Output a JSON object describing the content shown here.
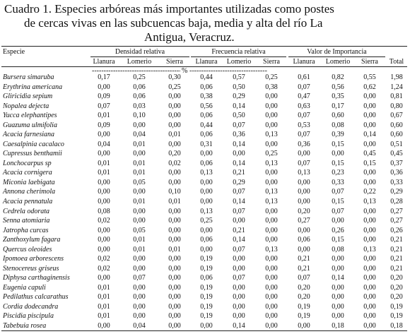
{
  "title": [
    "Cuadro 1. Especies arbóreas más importantes utilizadas como  postes",
    "de cercas vivas en las subcuencas baja, media y alta del  río La",
    "Antigua, Veracruz."
  ],
  "table": {
    "species_header": "Especie",
    "groups": [
      "Densidad relativa",
      "Frecuencia relativa",
      "Valor de Importancia"
    ],
    "subheaders": [
      "Llanura",
      "Lomerio",
      "Sierra",
      "Llanura",
      "Lomerio",
      "Sierra",
      "Llanura",
      "Lomerio",
      "Sierra",
      "Total"
    ],
    "unit": "%",
    "rows": [
      [
        "Bursera simaruba",
        "0,17",
        "0,25",
        "0,30",
        "0,44",
        "0,57",
        "0,25",
        "0,61",
        "0,82",
        "0,55",
        "1,98"
      ],
      [
        "Erythrina americana",
        "0,00",
        "0,06",
        "0,25",
        "0,06",
        "0,50",
        "0,38",
        "0,07",
        "0,56",
        "0,62",
        "1,24"
      ],
      [
        "Gliricidia sepium",
        "0,09",
        "0,06",
        "0,00",
        "0,38",
        "0,29",
        "0,00",
        "0,47",
        "0,35",
        "0,00",
        "0,81"
      ],
      [
        "Nopalea dejecta",
        "0,07",
        "0,03",
        "0,00",
        "0,56",
        "0,14",
        "0,00",
        "0,63",
        "0,17",
        "0,00",
        "0,80"
      ],
      [
        "Yucca elephantipes",
        "0,01",
        "0,10",
        "0,00",
        "0,06",
        "0,50",
        "0,00",
        "0,07",
        "0,60",
        "0,00",
        "0,67"
      ],
      [
        "Guazuma ulmifolia",
        "0,09",
        "0,00",
        "0,00",
        "0,44",
        "0,07",
        "0,00",
        "0,53",
        "0,08",
        "0,00",
        "0,60"
      ],
      [
        "Acacia farnesiana",
        "0,00",
        "0,04",
        "0,01",
        "0,06",
        "0,36",
        "0,13",
        "0,07",
        "0,39",
        "0,14",
        "0,60"
      ],
      [
        "Caesalpinia cacalaco",
        "0,04",
        "0,01",
        "0,00",
        "0,31",
        "0,14",
        "0,00",
        "0,36",
        "0,15",
        "0,00",
        "0,51"
      ],
      [
        "Cupressus benthamii",
        "0,00",
        "0,00",
        "0,20",
        "0,00",
        "0,00",
        "0,25",
        "0,00",
        "0,00",
        "0,45",
        "0,45"
      ],
      [
        "Lonchocarpus sp",
        "0,01",
        "0,01",
        "0,02",
        "0,06",
        "0,14",
        "0,13",
        "0,07",
        "0,15",
        "0,15",
        "0,37"
      ],
      [
        "Acacia cornigera",
        "0,01",
        "0,01",
        "0,00",
        "0,13",
        "0,21",
        "0,00",
        "0,13",
        "0,23",
        "0,00",
        "0,36"
      ],
      [
        "Miconia laebigata",
        "0,00",
        "0,05",
        "0,00",
        "0,00",
        "0,29",
        "0,00",
        "0,00",
        "0,33",
        "0,00",
        "0,33"
      ],
      [
        "Annona cherimola",
        "0,00",
        "0,00",
        "0,10",
        "0,00",
        "0,07",
        "0,13",
        "0,00",
        "0,07",
        "0,22",
        "0,29"
      ],
      [
        "Acacia pennatula",
        "0,00",
        "0,01",
        "0,01",
        "0,00",
        "0,14",
        "0,13",
        "0,00",
        "0,15",
        "0,13",
        "0,28"
      ],
      [
        "Cedrela odorata",
        "0,08",
        "0,00",
        "0,00",
        "0,13",
        "0,07",
        "0,00",
        "0,20",
        "0,07",
        "0,00",
        "0,27"
      ],
      [
        "Senna atomiaria",
        "0,02",
        "0,00",
        "0,00",
        "0,25",
        "0,00",
        "0,00",
        "0,27",
        "0,00",
        "0,00",
        "0,27"
      ],
      [
        "Jatropha curcas",
        "0,00",
        "0,05",
        "0,00",
        "0,00",
        "0,21",
        "0,00",
        "0,00",
        "0,26",
        "0,00",
        "0,26"
      ],
      [
        "Zanthoxylum fagara",
        "0,00",
        "0,01",
        "0,00",
        "0,06",
        "0,14",
        "0,00",
        "0,06",
        "0,15",
        "0,00",
        "0,21"
      ],
      [
        "Quercus oleoides",
        "0,00",
        "0,01",
        "0,01",
        "0,00",
        "0,07",
        "0,13",
        "0,00",
        "0,08",
        "0,13",
        "0,21"
      ],
      [
        "Ipomoea arborescens",
        "0,02",
        "0,00",
        "0,00",
        "0,19",
        "0,00",
        "0,00",
        "0,21",
        "0,00",
        "0,00",
        "0,21"
      ],
      [
        "Stenocereus griseus",
        "0,02",
        "0,00",
        "0,00",
        "0,19",
        "0,00",
        "0,00",
        "0,21",
        "0,00",
        "0,00",
        "0,21"
      ],
      [
        "Diphysa carthaginensis",
        "0,00",
        "0,07",
        "0,00",
        "0,06",
        "0,07",
        "0,00",
        "0,07",
        "0,14",
        "0,00",
        "0,20"
      ],
      [
        "Eugenia capuli",
        "0,01",
        "0,00",
        "0,00",
        "0,19",
        "0,00",
        "0,00",
        "0,20",
        "0,00",
        "0,00",
        "0,20"
      ],
      [
        "Pedilathus calcarathus",
        "0,01",
        "0,00",
        "0,00",
        "0,19",
        "0,00",
        "0,00",
        "0,20",
        "0,00",
        "0,00",
        "0,20"
      ],
      [
        "Cordia dodecandra",
        "0,01",
        "0,00",
        "0,00",
        "0,19",
        "0,00",
        "0,00",
        "0,19",
        "0,00",
        "0,00",
        "0,19"
      ],
      [
        "Piscidia piscipula",
        "0,01",
        "0,00",
        "0,00",
        "0,19",
        "0,00",
        "0,00",
        "0,19",
        "0,00",
        "0,00",
        "0,19"
      ],
      [
        "Tabebuia rosea",
        "0,00",
        "0,04",
        "0,00",
        "0,00",
        "0,14",
        "0,00",
        "0,00",
        "0,18",
        "0,00",
        "0,18"
      ]
    ]
  }
}
